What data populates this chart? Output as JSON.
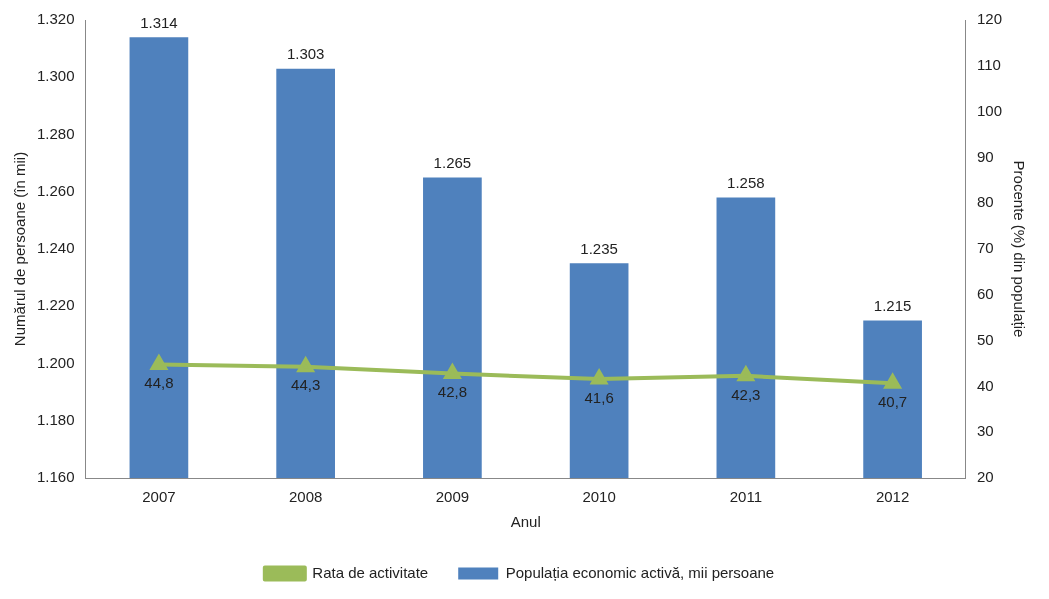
{
  "chart_data": {
    "type": "bar",
    "categories": [
      "2007",
      "2008",
      "2009",
      "2010",
      "2011",
      "2012"
    ],
    "xlabel": "Anul",
    "ylabel": "Numărul de persoane (în mii)",
    "y2label": "Procente (%) din populație",
    "ylim": [
      1160,
      1320
    ],
    "yticks": [
      {
        "value": 1160,
        "label": "1.160"
      },
      {
        "value": 1180,
        "label": "1.180"
      },
      {
        "value": 1200,
        "label": "1.200"
      },
      {
        "value": 1220,
        "label": "1.220"
      },
      {
        "value": 1240,
        "label": "1.240"
      },
      {
        "value": 1260,
        "label": "1.260"
      },
      {
        "value": 1280,
        "label": "1.280"
      },
      {
        "value": 1300,
        "label": "1.300"
      },
      {
        "value": 1320,
        "label": "1.320"
      }
    ],
    "y2lim": [
      20,
      120
    ],
    "y2ticks": [
      20,
      30,
      40,
      50,
      60,
      70,
      80,
      90,
      100,
      110,
      120
    ],
    "series": [
      {
        "name": "Populația economic activă, mii persoane",
        "color": "#4f81bd",
        "values": [
          1314,
          1303,
          1265,
          1235,
          1258,
          1215
        ],
        "value_labels": [
          "1.314",
          "1.303",
          "1.265",
          "1.235",
          "1.258",
          "1.215"
        ]
      },
      {
        "name": "Rata de activitate",
        "type": "line",
        "axis": "y2",
        "color": "#9bbb59",
        "values": [
          44.8,
          44.3,
          42.8,
          41.6,
          42.3,
          40.7
        ],
        "value_labels": [
          "44,8",
          "44,3",
          "42,8",
          "41,6",
          "42,3",
          "40,7"
        ]
      }
    ],
    "marker": "triangle",
    "legend": "bottom",
    "grid": false
  }
}
